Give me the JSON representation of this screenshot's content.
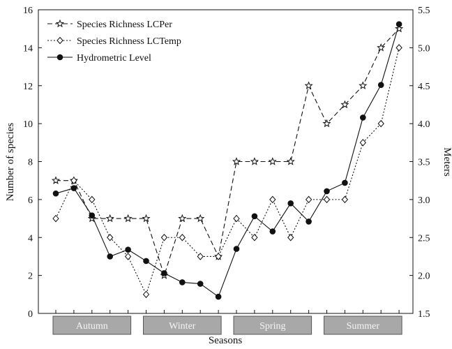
{
  "chart_data": {
    "type": "line",
    "xlabel": "Seasons",
    "ylabel_left": "Number of species",
    "ylabel_right": "Meters",
    "ylim_left": [
      0,
      16
    ],
    "ylim_right": [
      1.5,
      5.5
    ],
    "yticks_left": [
      "0",
      "2",
      "4",
      "6",
      "8",
      "10",
      "12",
      "14",
      "16"
    ],
    "yticks_right": [
      "1.5",
      "2.0",
      "2.5",
      "3.0",
      "3.5",
      "4.0",
      "4.5",
      "5.0",
      "5.5"
    ],
    "grid": false,
    "legend_position": "top-left",
    "x_count": 20,
    "season_groups": [
      {
        "label": "Autumn",
        "start": 1,
        "end": 5
      },
      {
        "label": "Winter",
        "start": 6,
        "end": 10
      },
      {
        "label": "Spring",
        "start": 11,
        "end": 15
      },
      {
        "label": "Summer",
        "start": 16,
        "end": 20
      }
    ],
    "series": [
      {
        "name": "Species Richness LCPer",
        "axis": "left",
        "marker": "star",
        "line_style": "dashed",
        "values": [
          7,
          7,
          5,
          5,
          5,
          5,
          2,
          5,
          5,
          3,
          8,
          8,
          8,
          8,
          12,
          10,
          11,
          12,
          14,
          15
        ]
      },
      {
        "name": "Species Richness LCTemp",
        "axis": "left",
        "marker": "diamond",
        "line_style": "dotted",
        "values": [
          5,
          7,
          6,
          4,
          3,
          1,
          4,
          4,
          3,
          3,
          5,
          4,
          6,
          4,
          6,
          6,
          6,
          9,
          10,
          14
        ]
      },
      {
        "name": "Hydrometric Level",
        "axis": "right",
        "marker": "circle",
        "line_style": "solid",
        "values": [
          3.08,
          3.15,
          2.79,
          2.25,
          2.34,
          2.19,
          2.03,
          1.91,
          1.89,
          1.72,
          2.35,
          2.78,
          2.58,
          2.95,
          2.71,
          3.11,
          3.22,
          4.08,
          4.51,
          5.31
        ]
      }
    ],
    "colors": {
      "line": "#111111",
      "season_box_fill": "#a8a8a8",
      "season_box_stroke": "#555555",
      "season_text": "#f4f4f4"
    }
  }
}
